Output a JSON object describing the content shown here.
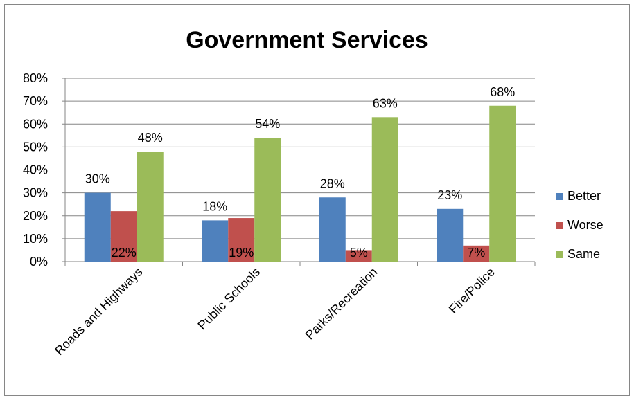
{
  "chart_data": {
    "type": "bar",
    "title": "Government Services",
    "xlabel": "",
    "ylabel": "",
    "categories": [
      "Roads and Highways",
      "Public Schools",
      "Parks/Recreation",
      "Fire/Police"
    ],
    "series": [
      {
        "name": "Better",
        "values": [
          30,
          18,
          28,
          23
        ],
        "labels": [
          "30%",
          "18%",
          "28%",
          "23%"
        ],
        "color": "#4F81BD"
      },
      {
        "name": "Worse",
        "values": [
          22,
          19,
          5,
          7
        ],
        "labels": [
          "22%",
          "19%",
          "5%",
          "7%"
        ],
        "color": "#C0504D"
      },
      {
        "name": "Same",
        "values": [
          48,
          54,
          63,
          68
        ],
        "labels": [
          "48%",
          "54%",
          "63%",
          "68%"
        ],
        "color": "#9BBB59"
      }
    ],
    "ylim": [
      0,
      80
    ],
    "yticks": [
      0,
      10,
      20,
      30,
      40,
      50,
      60,
      70,
      80
    ],
    "ytick_labels": [
      "0%",
      "10%",
      "20%",
      "30%",
      "40%",
      "50%",
      "60%",
      "70%",
      "80%"
    ],
    "grid": true,
    "legend_position": "right"
  }
}
